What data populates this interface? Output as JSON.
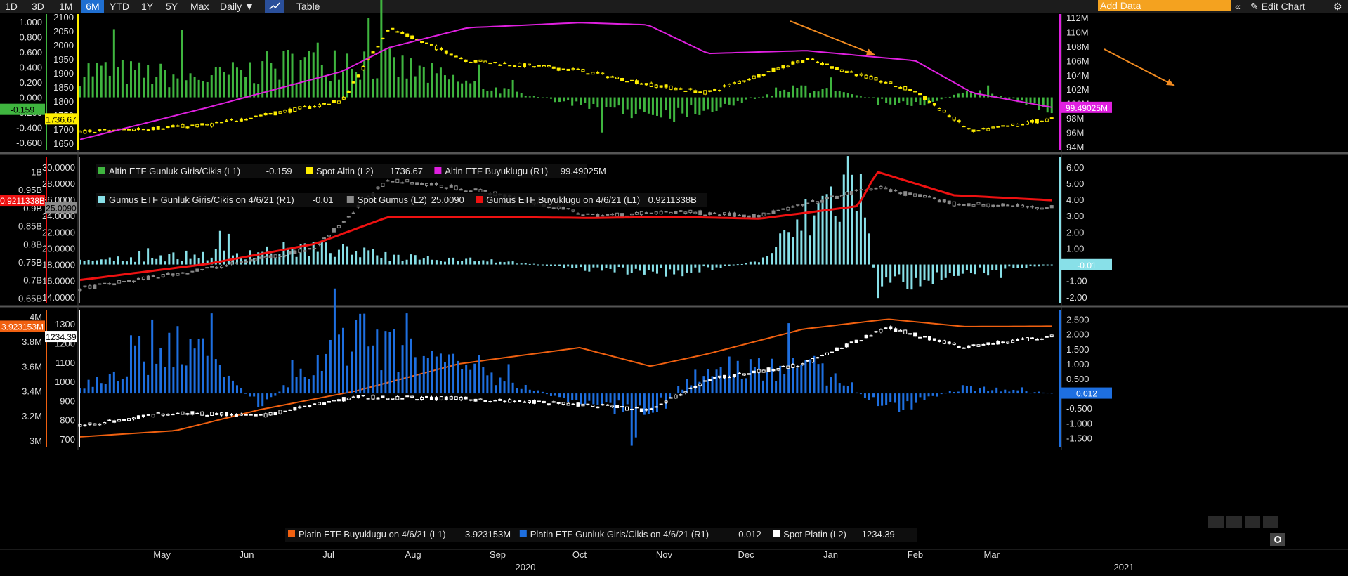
{
  "toolbar": {
    "ranges": [
      "1D",
      "3D",
      "1M",
      "6M",
      "YTD",
      "1Y",
      "5Y",
      "Max"
    ],
    "active_range": "6M",
    "frequency": "Daily",
    "table_label": "Table",
    "add_data_placeholder": "Add Data",
    "edit_chart_label": "Edit Chart",
    "chart_icon": "line-chart-icon",
    "collapse_icon": "double-chevron-left-icon",
    "edit_icon": "pencil-icon",
    "settings_icon": "gear-icon"
  },
  "colors": {
    "green": "#3fb53f",
    "yellow": "#ffee00",
    "magenta": "#e020e0",
    "cyan": "#88e0e8",
    "gray": "#8a8a8a",
    "red": "#ee1111",
    "orange": "#f06010",
    "blue": "#1e6fe0",
    "white": "#ffffff",
    "arrow": "#f08a20"
  },
  "x_axis": {
    "months": [
      "May",
      "Jun",
      "Jul",
      "Aug",
      "Sep",
      "Oct",
      "Nov",
      "Dec",
      "Jan",
      "Feb",
      "Mar"
    ],
    "years": [
      "2020",
      "2021"
    ]
  },
  "chart_data": [
    {
      "type": "line",
      "panel": "gold",
      "title": "",
      "left_axis_ticks": [
        "1.000",
        "0.800",
        "0.600",
        "0.400",
        "0.200",
        "0.000",
        "-0.200",
        "-0.400",
        "-0.600"
      ],
      "left2_axis_ticks": [
        "2100",
        "2050",
        "2000",
        "1950",
        "1900",
        "1850",
        "1800",
        "1750",
        "1700",
        "1650"
      ],
      "right_axis_ticks": [
        "112M",
        "110M",
        "108M",
        "106M",
        "104M",
        "102M",
        "100M",
        "98M",
        "96M",
        "94M"
      ],
      "ylim_L1": [
        -0.7,
        1.1
      ],
      "ylim_L2": [
        1625,
        2110
      ],
      "ylim_R1": [
        93.5,
        112.5
      ],
      "x": [
        "2020-04-15",
        "2020-06-01",
        "2020-07-20",
        "2020-08-06",
        "2020-09-04",
        "2020-10-15",
        "2020-11-09",
        "2020-12-01",
        "2021-01-06",
        "2021-02-15",
        "2021-03-08",
        "2021-04-06"
      ],
      "series": [
        {
          "name": "Altin ETF Gunluk Giris/Cikis (L1)",
          "last": "-0.159",
          "axis": "L1",
          "kind": "bar",
          "values": [
            0.36,
            0.25,
            0.55,
            0.42,
            0.18,
            -0.1,
            -0.2,
            -0.15,
            0.14,
            -0.12,
            0.1,
            -0.159
          ]
        },
        {
          "name": "Spot Altin (L2)",
          "last": "1736.67",
          "axis": "L2",
          "kind": "candle",
          "values": [
            1690,
            1715,
            1800,
            2060,
            1945,
            1910,
            1860,
            1830,
            1950,
            1835,
            1690,
            1736.67
          ]
        },
        {
          "name": "Altin ETF Buyuklugu (R1)",
          "last": "99.49025M",
          "axis": "R1",
          "kind": "line",
          "values": [
            95.0,
            99.5,
            104.5,
            107.8,
            110.6,
            111.3,
            111.0,
            107.0,
            107.4,
            106.0,
            101.5,
            99.49
          ]
        }
      ],
      "axis_flags": {
        "L1": "-0.159",
        "L2": "1736.67",
        "R1": "99.49025M"
      }
    },
    {
      "type": "line",
      "panel": "silver",
      "left_axis_ticks": [
        "1B",
        "0.95B",
        "0.9B",
        "0.85B",
        "0.8B",
        "0.75B",
        "0.7B",
        "0.65B"
      ],
      "left2_axis_ticks": [
        "30.0000",
        "28.0000",
        "26.0000",
        "24.0000",
        "22.0000",
        "20.0000",
        "18.0000",
        "16.0000",
        "14.0000"
      ],
      "right_axis_ticks": [
        "6.00",
        "5.00",
        "4.00",
        "3.00",
        "2.00",
        "1.00",
        "0.00",
        "-1.00",
        "-2.00"
      ],
      "ylim_L1": [
        0.635,
        1.04
      ],
      "ylim_L2": [
        13.2,
        31.2
      ],
      "ylim_R1": [
        -2.4,
        6.6
      ],
      "x": [
        "2020-04-15",
        "2020-06-01",
        "2020-07-10",
        "2020-08-06",
        "2020-09-10",
        "2020-10-20",
        "2020-11-20",
        "2020-12-20",
        "2021-01-25",
        "2021-02-01",
        "2021-03-01",
        "2021-04-06"
      ],
      "series": [
        {
          "name": "Gumus ETF Gunluk Giris/Cikis on 4/6/21 (R1)",
          "last": "-0.01",
          "axis": "R1",
          "kind": "bar",
          "values": [
            0.2,
            0.6,
            1.0,
            0.5,
            0.3,
            -0.3,
            -0.5,
            0.2,
            5.5,
            -1.5,
            -0.5,
            -0.01
          ]
        },
        {
          "name": "Spot Gumus (L2)",
          "last": "25.0090",
          "axis": "L2",
          "kind": "candle",
          "values": [
            15.0,
            17.5,
            20.0,
            28.5,
            27.0,
            24.0,
            24.5,
            24.0,
            27.0,
            27.5,
            25.5,
            25.009
          ]
        },
        {
          "name": "Gumus ETF Buyuklugu on 4/6/21 (L1)",
          "last": "0.9211338B",
          "axis": "L1",
          "kind": "line",
          "values": [
            0.7,
            0.745,
            0.8,
            0.875,
            0.875,
            0.872,
            0.875,
            0.87,
            0.905,
            1.0,
            0.935,
            0.9211
          ]
        }
      ],
      "axis_flags": {
        "L1": "0.9211338B",
        "L2": "25.0090",
        "R1": "-0.01"
      }
    },
    {
      "type": "line",
      "panel": "platinum",
      "left_axis_ticks": [
        "4M",
        "3.8M",
        "3.6M",
        "3.4M",
        "3.2M",
        "3M"
      ],
      "left2_axis_ticks": [
        "1300",
        "1200",
        "1100",
        "1000",
        "900",
        "800",
        "700"
      ],
      "right_axis_ticks": [
        "2.500",
        "2.000",
        "1.500",
        "1.000",
        "0.500",
        "0.000",
        "-0.500",
        "-1.000",
        "-1.500"
      ],
      "ylim_L1": [
        2.95,
        4.05
      ],
      "ylim_L2": [
        660,
        1370
      ],
      "ylim_R1": [
        -1.8,
        2.8
      ],
      "x": [
        "2020-04-15",
        "2020-05-20",
        "2020-06-20",
        "2020-07-25",
        "2020-09-01",
        "2020-10-15",
        "2020-11-10",
        "2020-12-01",
        "2021-01-05",
        "2021-02-05",
        "2021-03-05",
        "2021-04-06"
      ],
      "series": [
        {
          "name": "Platin ETF Buyuklugu on 4/6/21 (L1)",
          "last": "3.923153M",
          "axis": "L1",
          "kind": "line",
          "values": [
            3.03,
            3.08,
            3.25,
            3.4,
            3.62,
            3.75,
            3.6,
            3.7,
            3.9,
            3.98,
            3.92,
            3.923
          ]
        },
        {
          "name": "Platin ETF Gunluk Giris/Cikis on 4/6/21 (R1)",
          "last": "0.012",
          "axis": "R1",
          "kind": "bar",
          "values": [
            0.2,
            2.0,
            -0.4,
            1.8,
            0.8,
            -0.3,
            -0.6,
            0.9,
            1.0,
            -0.5,
            0.2,
            0.012
          ]
        },
        {
          "name": "Spot Platin (L2)",
          "last": "1234.39",
          "axis": "L2",
          "kind": "candle",
          "values": [
            770,
            840,
            820,
            920,
            910,
            880,
            850,
            1010,
            1090,
            1280,
            1180,
            1234.39
          ]
        }
      ],
      "axis_flags": {
        "L1": "3.923153M",
        "L2": "1234.39",
        "R1": "0.012"
      }
    }
  ]
}
